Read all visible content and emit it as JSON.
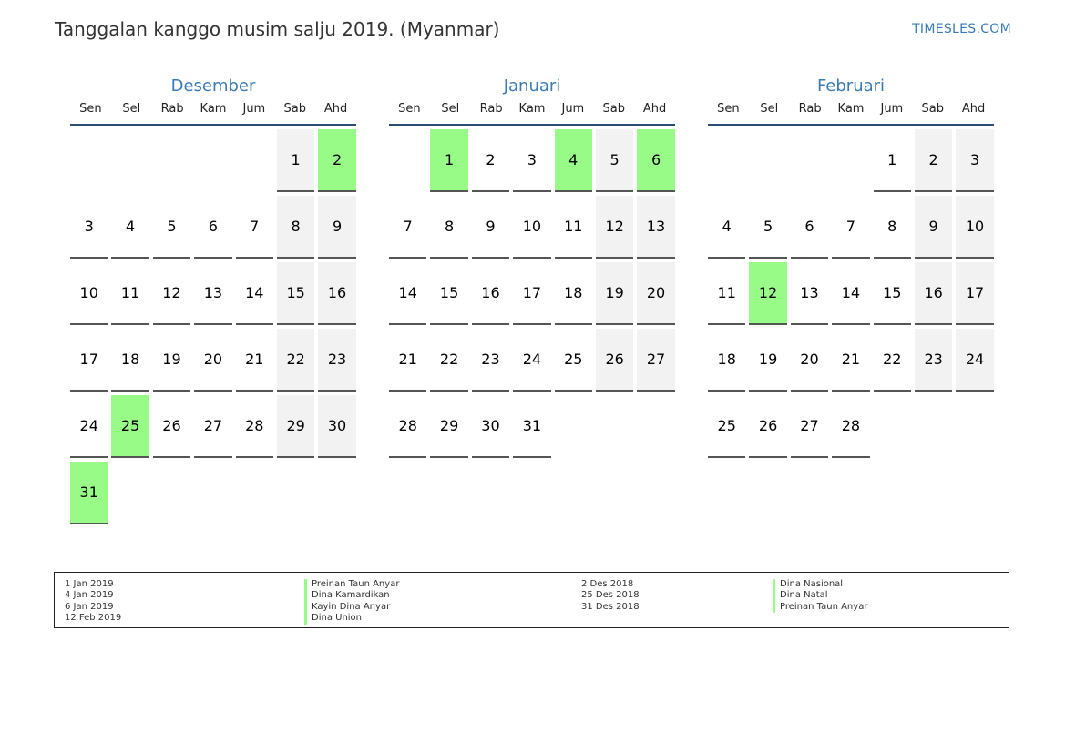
{
  "header": {
    "title": "Tanggalan kanggo musim salju 2019. (Myanmar)",
    "site": "TIMESLES.COM"
  },
  "weekdays": [
    "Sen",
    "Sel",
    "Rab",
    "Kam",
    "Jum",
    "Sab",
    "Ahd"
  ],
  "months": [
    {
      "name": "Desember",
      "offset": 5,
      "days": 31,
      "holidays": [
        2,
        25,
        31
      ]
    },
    {
      "name": "Januari",
      "offset": 1,
      "days": 31,
      "holidays": [
        1,
        4,
        6
      ]
    },
    {
      "name": "Februari",
      "offset": 4,
      "days": 28,
      "holidays": [
        12
      ]
    }
  ],
  "legend": {
    "left_dates": [
      "1 Jan 2019",
      "4 Jan 2019",
      "6 Jan 2019",
      "12 Feb 2019"
    ],
    "left_names": [
      "Preinan Taun Anyar",
      "Dina Kamardikan",
      "Kayin Dina Anyar",
      "Dina Union"
    ],
    "right_dates": [
      "2 Des 2018",
      "25 Des 2018",
      "31 Des 2018"
    ],
    "right_names": [
      "Dina Nasional",
      "Dina Natal",
      "Preinan Taun Anyar"
    ]
  },
  "colors": {
    "holiday": "#98fb88",
    "weekend": "#f2f2f2",
    "accent": "#3a7ab5"
  }
}
